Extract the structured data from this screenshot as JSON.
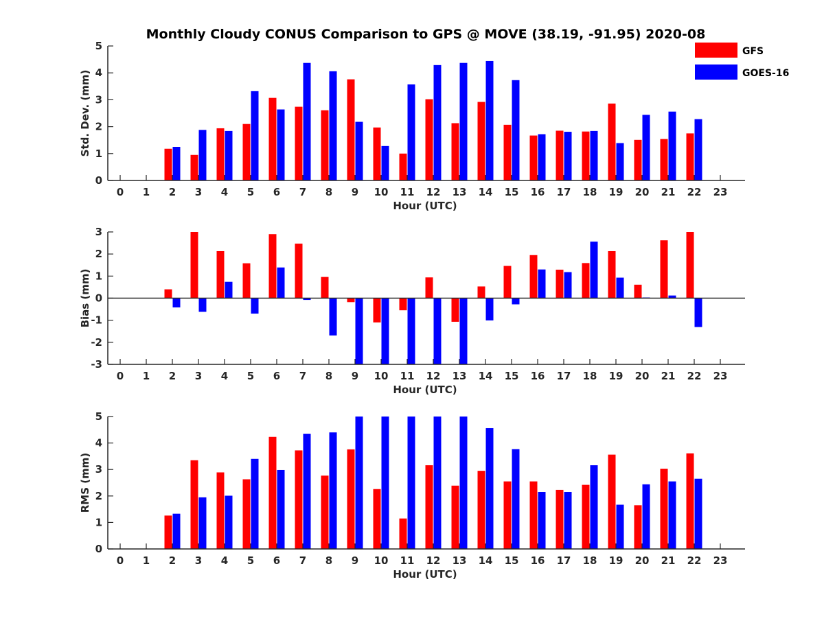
{
  "title": "Monthly Cloudy CONUS Comparison to GPS @ MOVE (38.19, -91.95) 2020-08",
  "legend": {
    "placement": "top-right",
    "entries": [
      {
        "label": "GFS",
        "color": "#ff0000"
      },
      {
        "label": "GOES-16",
        "color": "#0000ff"
      }
    ]
  },
  "chart_data": [
    {
      "type": "bar",
      "xlabel": "Hour (UTC)",
      "ylabel": "Std. Dev. (mm)",
      "ylim": [
        0,
        5
      ],
      "yticks": [
        "0",
        "1",
        "2",
        "3",
        "4",
        "5"
      ],
      "categories": [
        "0",
        "1",
        "2",
        "3",
        "4",
        "5",
        "6",
        "7",
        "8",
        "9",
        "10",
        "11",
        "12",
        "13",
        "14",
        "15",
        "16",
        "17",
        "18",
        "19",
        "20",
        "21",
        "22",
        "23"
      ],
      "series": [
        {
          "name": "GFS",
          "color": "#ff0000",
          "values": [
            null,
            null,
            1.18,
            0.95,
            1.94,
            2.1,
            3.07,
            2.74,
            2.61,
            3.76,
            1.97,
            1.0,
            3.02,
            2.13,
            2.92,
            2.07,
            1.67,
            1.85,
            1.82,
            2.86,
            1.51,
            1.54,
            1.75,
            null
          ]
        },
        {
          "name": "GOES-16",
          "color": "#0000ff",
          "values": [
            null,
            null,
            1.25,
            1.88,
            1.84,
            3.32,
            2.64,
            4.37,
            4.06,
            2.18,
            1.28,
            3.57,
            4.29,
            4.37,
            4.44,
            3.73,
            1.72,
            1.81,
            1.84,
            1.39,
            2.44,
            2.56,
            2.28,
            null
          ]
        }
      ]
    },
    {
      "type": "bar",
      "xlabel": "Hour (UTC)",
      "ylabel": "Bias (mm)",
      "ylim": [
        -3,
        3
      ],
      "yticks": [
        "-3",
        "-2",
        "-1",
        "0",
        "1",
        "2",
        "3"
      ],
      "categories": [
        "0",
        "1",
        "2",
        "3",
        "4",
        "5",
        "6",
        "7",
        "8",
        "9",
        "10",
        "11",
        "12",
        "13",
        "14",
        "15",
        "16",
        "17",
        "18",
        "19",
        "20",
        "21",
        "22",
        "23"
      ],
      "series": [
        {
          "name": "GFS",
          "color": "#ff0000",
          "values": [
            null,
            null,
            0.4,
            3.0,
            2.13,
            1.58,
            2.9,
            2.47,
            0.96,
            -0.18,
            -1.1,
            -0.55,
            0.94,
            -1.07,
            0.53,
            1.46,
            1.95,
            1.29,
            1.59,
            2.13,
            0.61,
            2.62,
            3.0,
            null
          ]
        },
        {
          "name": "GOES-16",
          "color": "#0000ff",
          "values": [
            null,
            null,
            -0.42,
            -0.62,
            0.74,
            -0.7,
            1.39,
            -0.08,
            -1.69,
            -3.0,
            -3.0,
            -3.0,
            -3.0,
            -3.0,
            -1.01,
            -0.28,
            1.3,
            1.18,
            2.56,
            0.93,
            0.03,
            0.12,
            -1.31,
            null
          ]
        }
      ]
    },
    {
      "type": "bar",
      "xlabel": "Hour (UTC)",
      "ylabel": "RMS (mm)",
      "ylim": [
        0,
        5
      ],
      "yticks": [
        "0",
        "1",
        "2",
        "3",
        "4",
        "5"
      ],
      "categories": [
        "0",
        "1",
        "2",
        "3",
        "4",
        "5",
        "6",
        "7",
        "8",
        "9",
        "10",
        "11",
        "12",
        "13",
        "14",
        "15",
        "16",
        "17",
        "18",
        "19",
        "20",
        "21",
        "22",
        "23"
      ],
      "series": [
        {
          "name": "GFS",
          "color": "#ff0000",
          "values": [
            null,
            null,
            1.26,
            3.35,
            2.89,
            2.63,
            4.23,
            3.72,
            2.77,
            3.76,
            2.26,
            1.15,
            3.16,
            2.39,
            2.95,
            2.55,
            2.55,
            2.23,
            2.42,
            3.56,
            1.65,
            3.03,
            3.61,
            null
          ]
        },
        {
          "name": "GOES-16",
          "color": "#0000ff",
          "values": [
            null,
            null,
            1.33,
            1.95,
            2.01,
            3.4,
            2.98,
            4.35,
            4.4,
            5.0,
            5.0,
            5.0,
            5.0,
            5.0,
            4.56,
            3.77,
            2.15,
            2.15,
            3.16,
            1.67,
            2.44,
            2.55,
            2.65,
            null
          ]
        }
      ]
    }
  ]
}
